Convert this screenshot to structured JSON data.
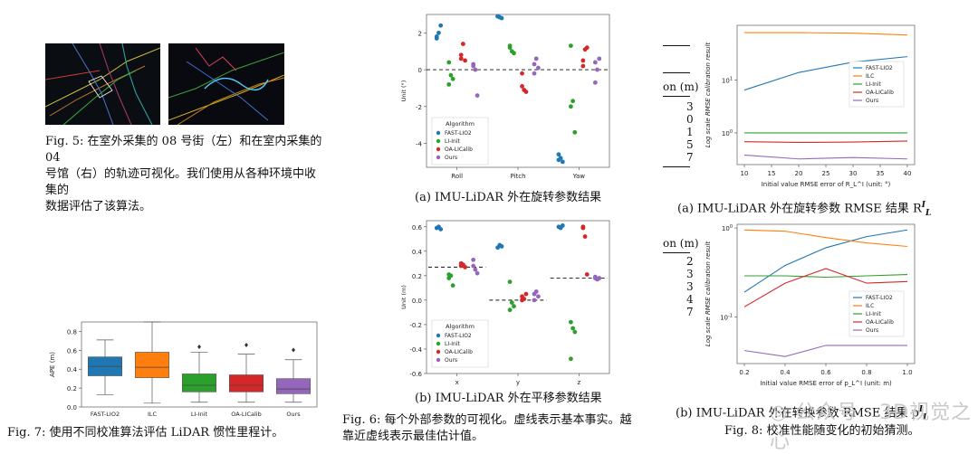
{
  "fig5": {
    "caption_lines": [
      "Fig. 5: 在室外采集的 08 号街（左）和在室内采集的 04",
      "号馆（右）的轨迹可视化。我们使用从各种环境中收集的",
      "数据评估了该算法。"
    ]
  },
  "fig7": {
    "caption": "Fig. 7: 使用不同校准算法评估 LiDAR 惯性里程计。",
    "chart_data": {
      "type": "box",
      "ylabel": "APE (m)",
      "categories": [
        "FAST-LIO2",
        "ILC",
        "LI-Init",
        "OA-LICalib",
        "Ours"
      ],
      "colors": [
        "#1f77b4",
        "#ff7f0e",
        "#2ca02c",
        "#d62728",
        "#9467bd"
      ],
      "ylim": [
        0,
        0.9
      ],
      "yticks": [
        "0.0",
        "0.2",
        "0.4",
        "0.6",
        "0.8"
      ],
      "boxes": [
        {
          "min": 0.13,
          "q1": 0.33,
          "median": 0.43,
          "q3": 0.53,
          "max": 0.71,
          "outlier": null
        },
        {
          "min": 0.04,
          "q1": 0.31,
          "median": 0.42,
          "q3": 0.58,
          "max": 0.9,
          "outlier": null
        },
        {
          "min": 0.05,
          "q1": 0.16,
          "median": 0.23,
          "q3": 0.35,
          "max": 0.58,
          "outlier": 0.63
        },
        {
          "min": 0.05,
          "q1": 0.16,
          "median": 0.23,
          "q3": 0.34,
          "max": 0.56,
          "outlier": 0.65
        },
        {
          "min": 0.05,
          "q1": 0.14,
          "median": 0.19,
          "q3": 0.3,
          "max": 0.5,
          "outlier": 0.6
        }
      ]
    }
  },
  "fig6a": {
    "caption": "(a) IMU-LiDAR 外在旋转参数结果",
    "chart_data": {
      "type": "scatter",
      "ylabel": "Unit (°)",
      "categories": [
        "Roll",
        "Pitch",
        "Yaw"
      ],
      "ylim": [
        -5.3,
        3.0
      ],
      "yticks": [
        "2",
        "0",
        "-2",
        "-4"
      ],
      "ytick_values": [
        2,
        0,
        -2,
        -4
      ],
      "legend_title": "Algorithm",
      "series": [
        {
          "name": "FAST-LIO2",
          "color": "#1f77b4",
          "values": [
            [
              1.8,
              2.0,
              2.4,
              1.7
            ],
            [
              2.9,
              2.85,
              2.8,
              2.9
            ],
            [
              -4.6,
              -4.8,
              -5.0,
              -4.9
            ]
          ]
        },
        {
          "name": "LI-Init",
          "color": "#2ca02c",
          "values": [
            [
              0.4,
              -0.3,
              -0.5,
              -0.8
            ],
            [
              1.3,
              1.0,
              0.9,
              1.2
            ],
            [
              1.3,
              -1.7,
              -3.4,
              -2.0
            ]
          ]
        },
        {
          "name": "OA-LICalib",
          "color": "#d62728",
          "values": [
            [
              0.8,
              1.4,
              0.5,
              0.6
            ],
            [
              -0.9,
              -1.1,
              -1.2,
              -0.2
            ],
            [
              0.5,
              1.1,
              1.2,
              0.2
            ]
          ]
        },
        {
          "name": "Ours",
          "color": "#9467bd",
          "values": [
            [
              0.2,
              0.0,
              -1.4,
              0.3
            ],
            [
              0.3,
              0.6,
              0.1,
              -0.2
            ],
            [
              0.4,
              0.0,
              0.6,
              -0.7
            ]
          ]
        }
      ],
      "truth": [
        0.0,
        0.0,
        0.0
      ]
    }
  },
  "fig6b": {
    "caption": "(b) IMU-LiDAR 外在平移参数结果",
    "chart_data": {
      "type": "scatter",
      "ylabel": "Unit (m)",
      "categories": [
        "x",
        "y",
        "z"
      ],
      "ylim": [
        -0.6,
        0.65
      ],
      "yticks": [
        "0.6",
        "0.4",
        "0.2",
        "0.0",
        "-0.2",
        "-0.4",
        "-0.6"
      ],
      "ytick_values": [
        0.6,
        0.4,
        0.2,
        0.0,
        -0.2,
        -0.4,
        -0.6
      ],
      "legend_title": "Algorithm",
      "series": [
        {
          "name": "FAST-LIO2",
          "color": "#1f77b4",
          "values": [
            [
              0.59,
              0.6,
              0.58
            ],
            [
              0.43,
              0.45,
              0.44
            ],
            [
              0.6,
              0.59,
              0.61
            ]
          ]
        },
        {
          "name": "LI-Init",
          "color": "#2ca02c",
          "values": [
            [
              0.18,
              0.2,
              0.12,
              0.21
            ],
            [
              0.15,
              -0.02,
              -0.05,
              -0.08
            ],
            [
              -0.18,
              -0.23,
              -0.26,
              -0.48
            ]
          ]
        },
        {
          "name": "OA-LICalib",
          "color": "#d62728",
          "values": [
            [
              0.28,
              0.29,
              0.27,
              0.3
            ],
            [
              0.03,
              0.01,
              0.05,
              0.0
            ],
            [
              0.59,
              0.52,
              0.21,
              0.6
            ]
          ]
        },
        {
          "name": "Ours",
          "color": "#9467bd",
          "values": [
            [
              0.33,
              0.25,
              0.22,
              0.28
            ],
            [
              0.0,
              0.07,
              0.03,
              0.05
            ],
            [
              0.18,
              0.17,
              0.18,
              0.19
            ]
          ]
        }
      ],
      "truth": [
        0.27,
        0.0,
        0.18
      ]
    }
  },
  "fig6": {
    "caption_lines": [
      "Fig. 6: 每个外部参数的可视化。虚线表示基本事实。越",
      "靠近虚线表示最佳估计值。"
    ]
  },
  "fig8a": {
    "caption": "(a) IMU-LiDAR 外在旋转参数 RMSE 结果 R",
    "caption_sup": "I",
    "caption_sub": "L",
    "chart_data": {
      "type": "line",
      "ylabel": "Log scale RMSE calibration result",
      "xlabel": "Initial value RMSE error of R_L^I (unit: °)",
      "x": [
        10,
        20,
        30,
        40
      ],
      "xticks": [
        "10",
        "15",
        "20",
        "25",
        "30",
        "35",
        "40"
      ],
      "xtick_values": [
        10,
        15,
        20,
        25,
        30,
        35,
        40
      ],
      "yscale": "log",
      "ylim": [
        0.25,
        110
      ],
      "yticks": [
        "10^1",
        "10^0"
      ],
      "ytick_values": [
        10,
        1
      ],
      "series": [
        {
          "name": "FAST-LIO2",
          "color": "#1f77b4",
          "values": [
            6.5,
            14,
            22,
            28
          ]
        },
        {
          "name": "ILC",
          "color": "#ff7f0e",
          "values": [
            80,
            80,
            78,
            72
          ]
        },
        {
          "name": "LI-Init",
          "color": "#2ca02c",
          "values": [
            1.0,
            1.0,
            1.0,
            1.0
          ]
        },
        {
          "name": "OA-LICalib",
          "color": "#d62728",
          "values": [
            0.68,
            0.66,
            0.67,
            0.7
          ]
        },
        {
          "name": "Ours",
          "color": "#9467bd",
          "values": [
            0.38,
            0.32,
            0.34,
            0.32
          ]
        }
      ]
    }
  },
  "fig8b": {
    "caption": "(b) IMU-LiDAR 外在转换参数 RMSE 结果 p",
    "caption_sup": "I",
    "caption_sub": "L",
    "chart_data": {
      "type": "line",
      "ylabel": "Log scale RMSE calibration result",
      "xlabel": "Initial value RMSE error of p_L^I (unit: m)",
      "x": [
        0.2,
        0.4,
        0.6,
        0.8,
        1.0
      ],
      "xticks": [
        "0.2",
        "0.4",
        "0.6",
        "0.8",
        "1.0"
      ],
      "xtick_values": [
        0.2,
        0.4,
        0.6,
        0.8,
        1.0
      ],
      "yscale": "log",
      "ylim": [
        0.03,
        1.1
      ],
      "yticks": [
        "10^0",
        "10^-1"
      ],
      "ytick_values": [
        1,
        0.1
      ],
      "series": [
        {
          "name": "FAST-LIO2",
          "color": "#1f77b4",
          "values": [
            0.19,
            0.38,
            0.6,
            0.8,
            0.95
          ]
        },
        {
          "name": "ILC",
          "color": "#ff7f0e",
          "values": [
            0.95,
            0.92,
            0.78,
            0.68,
            0.62
          ]
        },
        {
          "name": "LI-Init",
          "color": "#2ca02c",
          "values": [
            0.29,
            0.29,
            0.28,
            0.29,
            0.3
          ]
        },
        {
          "name": "OA-LICalib",
          "color": "#d62728",
          "values": [
            0.13,
            0.24,
            0.35,
            0.24,
            0.25
          ]
        },
        {
          "name": "Ours",
          "color": "#9467bd",
          "values": [
            0.042,
            0.036,
            0.048,
            0.048,
            0.048
          ]
        }
      ]
    }
  },
  "fig8": {
    "caption": "Fig. 8: 校准性能随变化的初始猜测。"
  },
  "partial_table": {
    "top_fragment": [
      "on (m)",
      "3",
      "0",
      "1",
      "5",
      "7"
    ],
    "bottom_fragment": [
      "on (m)",
      "2",
      "3",
      "3",
      "4",
      "7"
    ]
  },
  "watermark": {
    "text": "公众号 · 3D视觉之心"
  }
}
